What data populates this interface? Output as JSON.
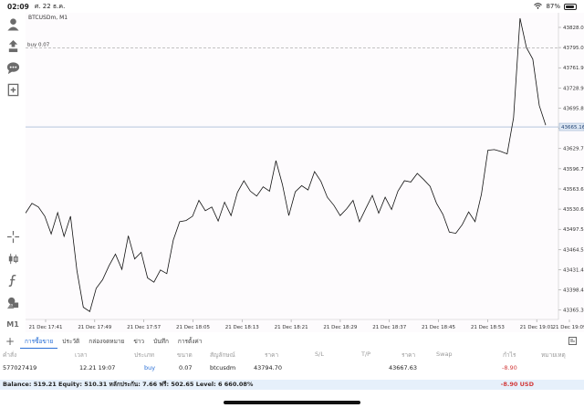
{
  "status_bar": {
    "time": "02:09",
    "date": "ศ. 22 ธ.ค.",
    "battery": "87%",
    "battery_level": 0.87,
    "wifi_icon": "wifi-icon"
  },
  "toolbar": {
    "items": [
      {
        "name": "account-icon"
      },
      {
        "name": "trade-icon"
      },
      {
        "name": "chat-icon"
      },
      {
        "name": "new-chart-icon"
      },
      {
        "name": "crosshair-icon"
      },
      {
        "name": "chart-type-icon"
      },
      {
        "name": "indicators-icon"
      },
      {
        "name": "objects-icon"
      }
    ],
    "timeframe": "M1"
  },
  "chart": {
    "symbol": "BTCUSDm, M1",
    "buy_line_label": "buy 0.07",
    "current_price_label": "43665.16",
    "colors": {
      "line": "#111111",
      "buy_line": "#9e9e9e",
      "price_badge": "#dfe8f4"
    }
  },
  "chart_data": {
    "type": "line",
    "title": "BTCUSDm, M1",
    "x_ticks": [
      "21 Dec 17:41",
      "21 Dec 17:49",
      "21 Dec 17:57",
      "21 Dec 18:05",
      "21 Dec 18:13",
      "21 Dec 18:21",
      "21 Dec 18:29",
      "21 Dec 18:37",
      "21 Dec 18:45",
      "21 Dec 18:53",
      "21 Dec 19:01",
      "21 Dec 19:09"
    ],
    "y_ticks": [
      "43828.05",
      "43795.00",
      "43761.95",
      "43728.90",
      "43695.85",
      "43662.80",
      "43629.75",
      "43596.70",
      "43563.65",
      "43530.60",
      "43497.55",
      "43464.50",
      "43431.45",
      "43398.40",
      "43365.35"
    ],
    "ylim": [
      43350,
      43840
    ],
    "buy_level": 43794.7,
    "current_price": 43665.16,
    "series": [
      {
        "values": [
          43524,
          43540,
          43534,
          43519,
          43490,
          43525,
          43486,
          43519,
          43430,
          43370,
          43363,
          43401,
          43415,
          43438,
          43457,
          43432,
          43487,
          43449,
          43460,
          43418,
          43411,
          43431,
          43425,
          43480,
          43510,
          43512,
          43519,
          43545,
          43528,
          43534,
          43511,
          43542,
          43520,
          43558,
          43577,
          43560,
          43552,
          43567,
          43560,
          43610,
          43571,
          43520,
          43559,
          43569,
          43562,
          43592,
          43576,
          43550,
          43537,
          43520,
          43531,
          43545,
          43510,
          43532,
          43553,
          43524,
          43550,
          43530,
          43560,
          43577,
          43575,
          43589,
          43579,
          43568,
          43540,
          43522,
          43493,
          43491,
          43505,
          43526,
          43510,
          43555,
          43627,
          43628,
          43625,
          43621,
          43680,
          43843,
          43795,
          43776,
          43700,
          43668
        ]
      }
    ]
  },
  "tabs": [
    "การซื้อขาย",
    "ประวัติ",
    "กล่องจดหมาย",
    "ข่าว",
    "บันทึก",
    "การตั้งค่า"
  ],
  "table": {
    "headers": [
      "คำสั่ง",
      "เวลา",
      "ประเภท",
      "ขนาด",
      "สัญลักษณ์",
      "ราคา",
      "S/L",
      "T/P",
      "ราคา",
      "Swap",
      "กำไร",
      "หมายเหตุ"
    ],
    "row": {
      "order": "577027419",
      "time": "12.21 19:07",
      "type": "buy",
      "size": "0.07",
      "symbol": "btcusdm",
      "open_price": "43794.70",
      "sl": "",
      "tp": "",
      "price": "43667.63",
      "swap": "",
      "profit": "-8.90",
      "comment": ""
    }
  },
  "balance": {
    "text": "Balance: 519.21 Equity: 510.31 หลักประกัน: 7.66 ฟรี: 502.65 Level: 6 660.08%",
    "total": "-8.90  USD"
  }
}
